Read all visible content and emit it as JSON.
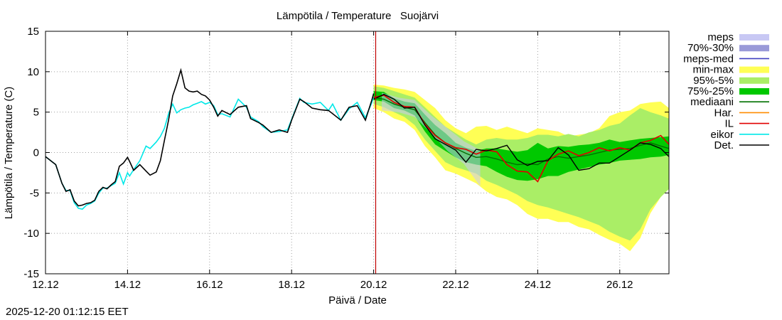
{
  "chart_data": {
    "type": "line",
    "title": "Lämpötila / Temperature   Suojärvi",
    "xlabel": "Päivä / Date",
    "ylabel": "Lämpötila / Temperature (C)",
    "ylim": [
      -15,
      15
    ],
    "xlim": [
      0,
      15.2
    ],
    "yticks": [
      -15,
      -10,
      -5,
      0,
      5,
      10,
      15
    ],
    "xticks": [
      {
        "x": 0,
        "label": "12.12"
      },
      {
        "x": 2,
        "label": "14.12"
      },
      {
        "x": 4,
        "label": "16.12"
      },
      {
        "x": 6,
        "label": "18.12"
      },
      {
        "x": 8,
        "label": "20.12"
      },
      {
        "x": 10,
        "label": "22.12"
      },
      {
        "x": 12,
        "label": "24.12"
      },
      {
        "x": 14,
        "label": "26.12"
      }
    ],
    "grid": true,
    "legend_position": "right",
    "forecast_start": 8.05,
    "colors": {
      "meps": "#c8c8f4",
      "p70_30": "#9a9ad8",
      "meps_med": "#4040c0",
      "minmax": "#ffff55",
      "p95_5": "#aaee66",
      "p75_25": "#00c800",
      "mediaani": "#007000",
      "har": "#ff8c00",
      "il": "#e00000",
      "eikor": "#00e8e8",
      "det": "#000000",
      "vline": "#c00000"
    },
    "legend": [
      {
        "label": "meps",
        "kind": "box",
        "color": "#c8c8f4"
      },
      {
        "label": "70%-30%",
        "kind": "box",
        "color": "#9a9ad8"
      },
      {
        "label": "meps-med",
        "kind": "line",
        "color": "#4040c0"
      },
      {
        "label": "min-max",
        "kind": "box",
        "color": "#ffff55"
      },
      {
        "label": "95%-5%",
        "kind": "box",
        "color": "#aaee66"
      },
      {
        "label": "75%-25%",
        "kind": "box",
        "color": "#00c800"
      },
      {
        "label": "mediaani",
        "kind": "line",
        "color": "#007000"
      },
      {
        "label": "Har.",
        "kind": "line",
        "color": "#ff8c00"
      },
      {
        "label": "IL",
        "kind": "line",
        "color": "#e00000"
      },
      {
        "label": "eikor",
        "kind": "line",
        "color": "#00e8e8"
      },
      {
        "label": "Det.",
        "kind": "line",
        "color": "#000000"
      }
    ],
    "observed": {
      "x": [
        0,
        0.25,
        0.4,
        0.5,
        0.6,
        0.7,
        0.8,
        0.9,
        1.0,
        1.1,
        1.2,
        1.3,
        1.4,
        1.5,
        1.6,
        1.7,
        1.8,
        1.9,
        2.0,
        2.05,
        2.15,
        2.3,
        2.45,
        2.55,
        2.7,
        2.8,
        2.9,
        3.0,
        3.1,
        3.2,
        3.3,
        3.4,
        3.5,
        3.6,
        3.7,
        3.8,
        3.9,
        4.0,
        4.1,
        4.2,
        4.3,
        4.5,
        4.7,
        4.9,
        5.0,
        5.2,
        5.3,
        5.5,
        5.7,
        5.9,
        6.0,
        6.2,
        6.3,
        6.5,
        6.7,
        6.9,
        7.0,
        7.2,
        7.4,
        7.6,
        7.8,
        7.95,
        8.0
      ],
      "det": [
        -0.5,
        -1.5,
        -3.8,
        -4.8,
        -4.6,
        -6.0,
        -6.6,
        -6.5,
        -6.3,
        -6.2,
        -5.9,
        -4.8,
        -4.3,
        -4.5,
        -4.0,
        -3.6,
        -1.7,
        -1.3,
        -0.6,
        -1.1,
        -2.2,
        -1.5,
        -2.3,
        -2.8,
        -2.4,
        -1.0,
        1.5,
        4.0,
        7.0,
        8.5,
        10.2,
        8.0,
        7.6,
        7.5,
        7.6,
        7.2,
        7.0,
        6.5,
        5.6,
        4.5,
        5.2,
        4.7,
        5.6,
        5.8,
        4.2,
        3.7,
        3.4,
        2.5,
        2.8,
        2.5,
        4.0,
        6.6,
        6.3,
        5.5,
        5.3,
        5.2,
        4.8,
        4.0,
        5.6,
        5.8,
        4.0,
        6.4,
        7.3
      ],
      "eikor": [
        -0.5,
        -1.5,
        -3.8,
        -4.7,
        -4.7,
        -6.2,
        -6.9,
        -7.0,
        -6.5,
        -6.3,
        -6.0,
        -5.0,
        -4.4,
        -4.4,
        -4.1,
        -3.8,
        -2.5,
        -3.9,
        -2.5,
        -2.9,
        -2.1,
        -1.0,
        0.8,
        0.5,
        1.3,
        2.0,
        3.0,
        4.8,
        6.0,
        4.9,
        5.3,
        5.5,
        5.6,
        5.9,
        6.1,
        6.3,
        6.0,
        6.2,
        5.8,
        4.7,
        4.8,
        4.4,
        6.6,
        5.6,
        4.4,
        3.8,
        3.2,
        2.5,
        2.6,
        2.8,
        4.1,
        6.7,
        6.2,
        6.0,
        6.2,
        5.2,
        6.0,
        4.0,
        5.4,
        6.2,
        4.3,
        6.1,
        6.9
      ]
    },
    "forecast": {
      "x": [
        8.0,
        8.25,
        8.5,
        8.75,
        9.0,
        9.25,
        9.5,
        9.75,
        10.0,
        10.25,
        10.5,
        10.75,
        11.0,
        11.25,
        11.5,
        11.75,
        12.0,
        12.25,
        12.5,
        12.75,
        13.0,
        13.25,
        13.5,
        13.75,
        14.0,
        14.25,
        14.5,
        14.75,
        15.0,
        15.2
      ],
      "min": [
        5.5,
        5.0,
        4.2,
        3.8,
        2.8,
        0.8,
        -0.6,
        -2.2,
        -2.6,
        -3.2,
        -3.8,
        -4.8,
        -5.5,
        -5.8,
        -6.5,
        -7.6,
        -8.2,
        -8.2,
        -8.6,
        -8.6,
        -9.2,
        -9.5,
        -10.2,
        -10.8,
        -11.3,
        -12.2,
        -10.6,
        -7.5,
        -5.5,
        -4.5
      ],
      "p05": [
        6.0,
        5.6,
        5.0,
        4.4,
        3.4,
        1.6,
        0.2,
        -1.2,
        -1.8,
        -2.2,
        -2.6,
        -3.5,
        -4.0,
        -4.6,
        -5.2,
        -6.0,
        -6.5,
        -6.8,
        -7.2,
        -7.6,
        -8.0,
        -8.5,
        -9.0,
        -9.8,
        -10.4,
        -10.9,
        -9.5,
        -7.0,
        -5.5,
        -4.5
      ],
      "p25": [
        6.5,
        6.3,
        5.5,
        5.2,
        4.6,
        2.6,
        1.0,
        0.2,
        -0.6,
        -1.2,
        -1.5,
        -1.7,
        -2.4,
        -3.0,
        -3.4,
        -3.5,
        -3.3,
        -2.9,
        -2.9,
        -2.4,
        -2.1,
        -1.8,
        -1.5,
        -1.3,
        -1.0,
        -0.9,
        -0.8,
        -0.6,
        -0.5,
        -0.3
      ],
      "p75": [
        7.6,
        7.5,
        6.7,
        6.3,
        6.1,
        4.7,
        3.4,
        2.4,
        1.2,
        0.6,
        0.2,
        0.5,
        0.5,
        0.3,
        0.1,
        0.3,
        1.2,
        0.5,
        0.8,
        0.7,
        0.9,
        1.0,
        1.2,
        1.6,
        1.3,
        1.5,
        1.7,
        1.8,
        1.9,
        2.0
      ],
      "p95": [
        8.2,
        8.0,
        7.6,
        7.2,
        6.8,
        5.6,
        4.4,
        3.2,
        2.4,
        1.6,
        1.0,
        1.6,
        1.8,
        1.6,
        1.6,
        1.8,
        2.2,
        2.2,
        2.0,
        2.3,
        2.0,
        2.5,
        2.8,
        3.3,
        3.6,
        4.6,
        5.5,
        5.0,
        4.6,
        4.2
      ],
      "max": [
        8.4,
        8.3,
        8.0,
        7.8,
        7.5,
        6.5,
        5.5,
        4.0,
        3.0,
        2.4,
        3.2,
        3.3,
        2.8,
        3.2,
        2.8,
        2.4,
        3.0,
        2.8,
        2.6,
        2.0,
        2.2,
        2.4,
        3.0,
        4.5,
        5.0,
        5.2,
        6.0,
        6.2,
        6.3,
        5.5
      ],
      "median": [
        6.8,
        6.6,
        6.0,
        5.6,
        5.3,
        3.7,
        2.2,
        1.2,
        0.5,
        -0.1,
        -0.6,
        -0.5,
        -0.8,
        -1.2,
        -1.5,
        -1.4,
        -1.5,
        -0.8,
        -0.5,
        -0.7,
        -0.5,
        -0.3,
        0.0,
        0.3,
        0.4,
        0.5,
        0.9,
        1.2,
        0.8,
        0.5
      ],
      "il": [
        6.8,
        7.1,
        6.2,
        5.7,
        5.6,
        3.5,
        2.1,
        1.2,
        0.6,
        0.4,
        -0.2,
        0.3,
        0.1,
        -1.5,
        -2.3,
        -2.4,
        -3.6,
        -1.0,
        -0.2,
        0.2,
        -0.4,
        0.0,
        0.6,
        0.2,
        0.6,
        0.3,
        1.2,
        1.5,
        2.1,
        1.0
      ],
      "det": [
        6.6,
        7.2,
        6.6,
        5.5,
        5.6,
        3.4,
        1.7,
        1.0,
        0.3,
        -1.2,
        0.4,
        0.2,
        0.5,
        0.9,
        -0.9,
        -1.6,
        -1.1,
        -1.0,
        0.6,
        -0.3,
        -2.2,
        -2.0,
        -1.3,
        -1.3,
        -0.5,
        0.3,
        1.2,
        1.0,
        0.5,
        -0.5
      ],
      "meps_x": [
        8.2,
        8.6,
        9.0,
        9.4,
        9.8,
        10.2,
        10.6
      ],
      "meps_hi": [
        7.4,
        6.8,
        6.5,
        4.6,
        3.0,
        1.4,
        0.3
      ],
      "meps_lo": [
        5.2,
        5.0,
        4.4,
        2.4,
        0.2,
        -1.4,
        -4.2
      ]
    }
  },
  "footer": {
    "timestamp": "2025-12-20 01:12:15 EET"
  }
}
